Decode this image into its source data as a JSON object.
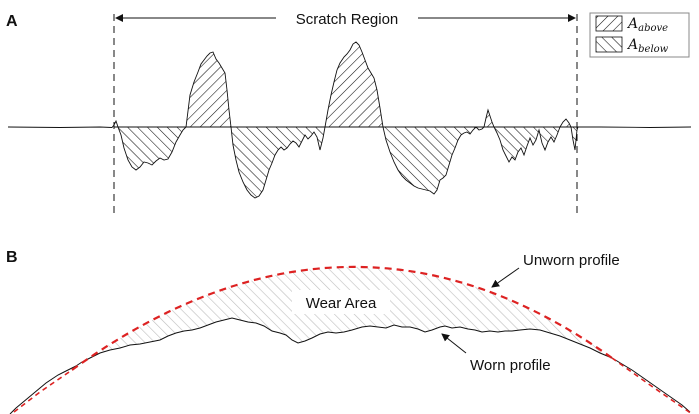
{
  "panel_a": {
    "label": "A",
    "region_label": "Scratch Region",
    "legend": {
      "above": {
        "symbol": "A",
        "subscript": "above"
      },
      "below": {
        "symbol": "A",
        "subscript": "below"
      }
    }
  },
  "panel_b": {
    "label": "B",
    "area_label": "Wear Area",
    "unworn_label": "Unworn profile",
    "worn_label": "Worn profile",
    "colors": {
      "unworn_curve": "#dd2222",
      "worn_curve": "#111111",
      "hatch": "#bdbdbd"
    }
  }
}
